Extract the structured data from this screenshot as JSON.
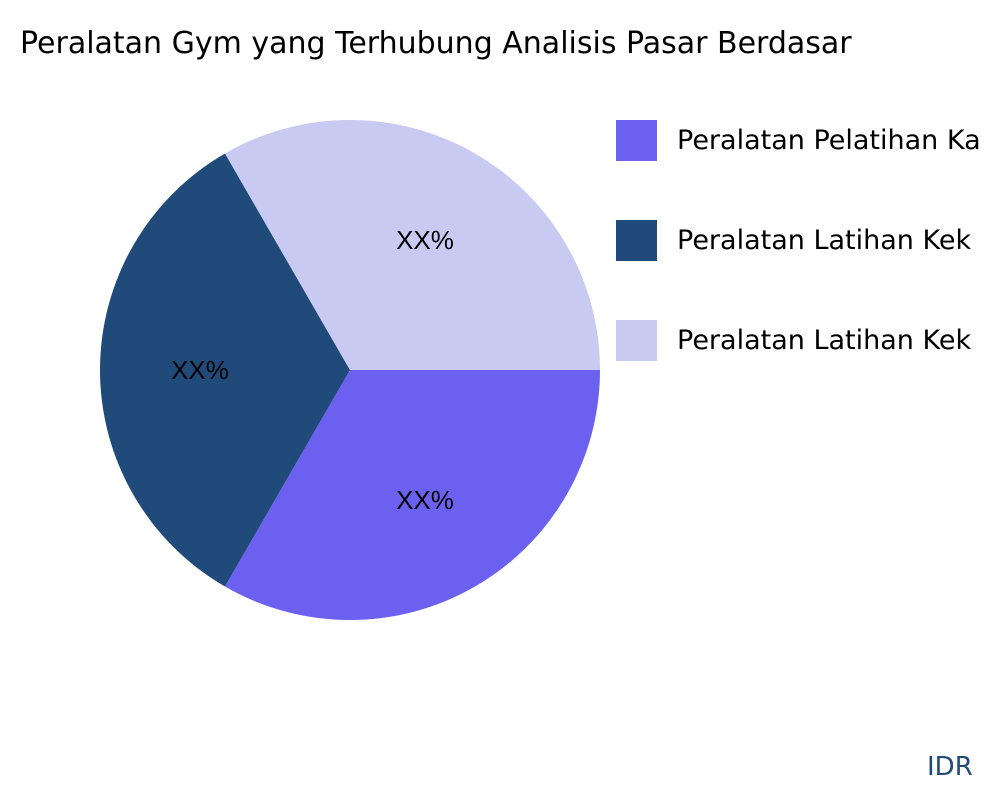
{
  "chart_data": {
    "type": "pie",
    "title": "Peralatan Gym yang Terhubung Analisis Pasar Berdasar",
    "slices": [
      {
        "label": "Peralatan Pelatihan Ka",
        "value": 33.33,
        "data_label": "XX%",
        "color": "#6c60f0"
      },
      {
        "label": "Peralatan Latihan Kek",
        "value": 33.33,
        "data_label": "XX%",
        "color": "#1f4a7a"
      },
      {
        "label": "Peralatan Latihan Kek",
        "value": 33.33,
        "data_label": "XX%",
        "color": "#c9caf2"
      }
    ],
    "legend_placement": "right"
  },
  "watermark": "IDR"
}
